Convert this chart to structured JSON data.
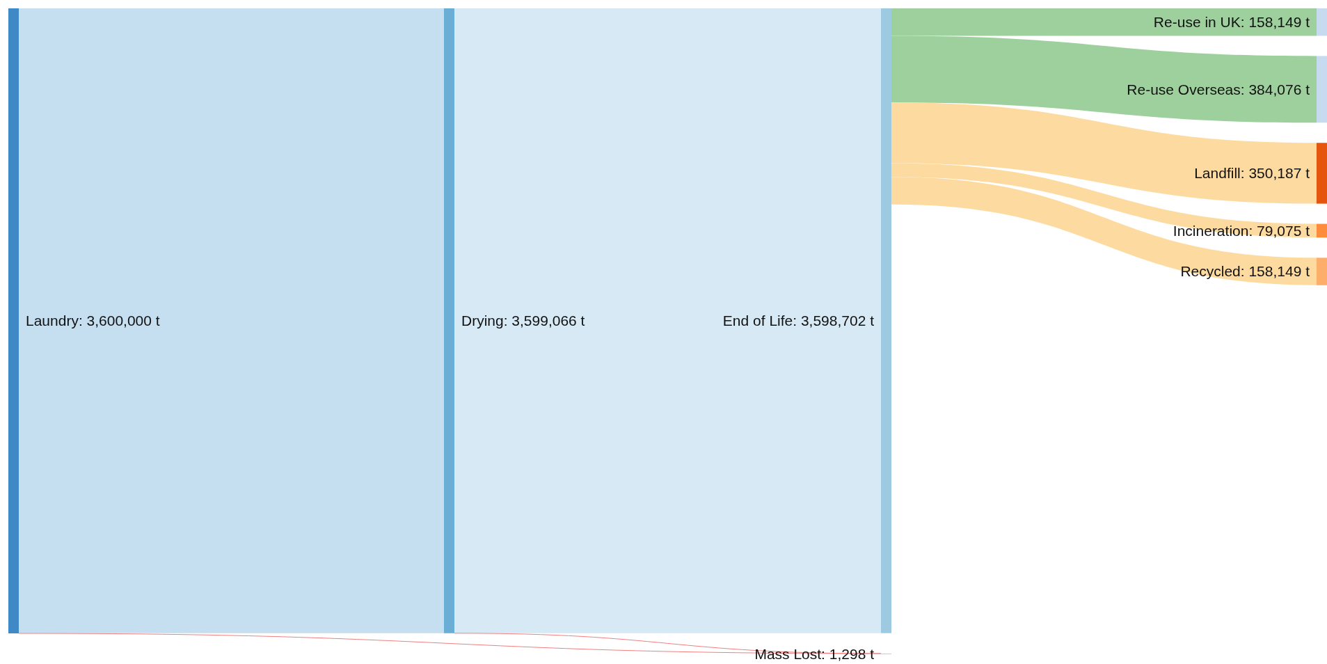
{
  "chart_data": {
    "type": "other",
    "categories": [
      "Laundry",
      "Drying",
      "End of Life",
      "Re-use in UK",
      "Re-use Overseas",
      "Landfill",
      "Incineration",
      "Recycled",
      "Mass Lost"
    ],
    "values": [
      3600000,
      3599066,
      3598702,
      158149,
      384076,
      350187,
      79075,
      158149,
      1298
    ],
    "value_labels": [
      ": 3,600,000 t",
      ": 3,599,066 t",
      ": 3,598,702 t",
      ": 158,149 t",
      ": 384,076 t",
      ": 350,187 t",
      ": 79,075 t",
      ": 158,149 t",
      ": 1,298 t"
    ]
  }
}
